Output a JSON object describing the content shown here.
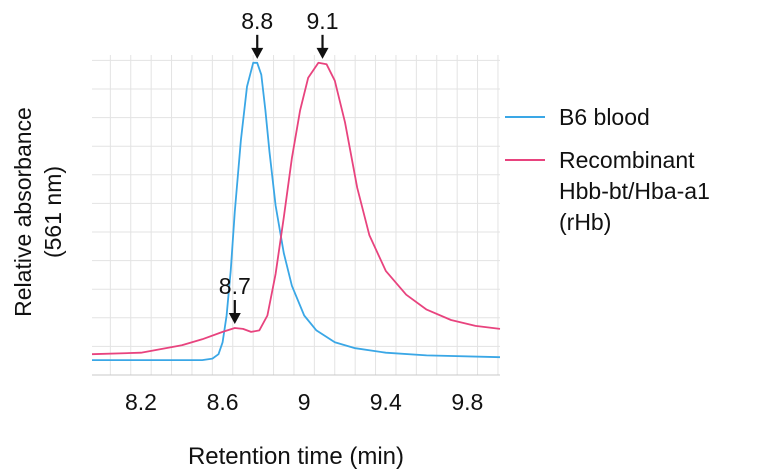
{
  "chart_data": {
    "type": "line",
    "title": "",
    "xlabel": "Retention time (min)",
    "ylabel": [
      "Relative absorbance",
      "(561 nm)"
    ],
    "xlim": [
      7.96,
      9.96
    ],
    "ylim": [
      -0.05,
      1.06
    ],
    "grid": true,
    "x_ticks": [
      "8.2",
      "8.6",
      "9",
      "9.4",
      "9.8"
    ],
    "x_tick_values": [
      8.2,
      8.6,
      9.0,
      9.4,
      9.8
    ],
    "legend_position": "right",
    "series": [
      {
        "name": "B6 blood",
        "color": "#3aa7e6",
        "points": [
          [
            7.96,
            0.0
          ],
          [
            8.5,
            0.0
          ],
          [
            8.55,
            0.005
          ],
          [
            8.58,
            0.02
          ],
          [
            8.6,
            0.06
          ],
          [
            8.62,
            0.15
          ],
          [
            8.64,
            0.3
          ],
          [
            8.66,
            0.5
          ],
          [
            8.69,
            0.74
          ],
          [
            8.72,
            0.92
          ],
          [
            8.75,
            1.0
          ],
          [
            8.77,
            1.0
          ],
          [
            8.79,
            0.96
          ],
          [
            8.81,
            0.84
          ],
          [
            8.83,
            0.7
          ],
          [
            8.86,
            0.52
          ],
          [
            8.9,
            0.36
          ],
          [
            8.94,
            0.25
          ],
          [
            9.0,
            0.15
          ],
          [
            9.06,
            0.1
          ],
          [
            9.15,
            0.06
          ],
          [
            9.25,
            0.04
          ],
          [
            9.4,
            0.025
          ],
          [
            9.6,
            0.016
          ],
          [
            9.96,
            0.01
          ]
        ]
      },
      {
        "name": "Recombinant Hbb-bt/Hba-a1 (rHb)",
        "legend_lines": [
          "Recombinant",
          "Hbb-bt/Hba-a1",
          "(rHb)"
        ],
        "color": "#e8437e",
        "points": [
          [
            7.96,
            0.02
          ],
          [
            8.2,
            0.025
          ],
          [
            8.4,
            0.05
          ],
          [
            8.5,
            0.07
          ],
          [
            8.6,
            0.095
          ],
          [
            8.66,
            0.108
          ],
          [
            8.7,
            0.105
          ],
          [
            8.74,
            0.095
          ],
          [
            8.78,
            0.1
          ],
          [
            8.82,
            0.15
          ],
          [
            8.86,
            0.29
          ],
          [
            8.9,
            0.48
          ],
          [
            8.94,
            0.68
          ],
          [
            8.98,
            0.84
          ],
          [
            9.02,
            0.95
          ],
          [
            9.07,
            1.0
          ],
          [
            9.11,
            0.995
          ],
          [
            9.15,
            0.94
          ],
          [
            9.2,
            0.8
          ],
          [
            9.26,
            0.58
          ],
          [
            9.32,
            0.42
          ],
          [
            9.4,
            0.3
          ],
          [
            9.5,
            0.22
          ],
          [
            9.6,
            0.17
          ],
          [
            9.72,
            0.135
          ],
          [
            9.84,
            0.115
          ],
          [
            9.96,
            0.105
          ]
        ]
      }
    ],
    "annotations": [
      {
        "text": "8.8",
        "x": 8.77,
        "y": 1.0
      },
      {
        "text": "9.1",
        "x": 9.09,
        "y": 1.0
      },
      {
        "text": "8.7",
        "x": 8.66,
        "y": 0.108
      }
    ]
  }
}
